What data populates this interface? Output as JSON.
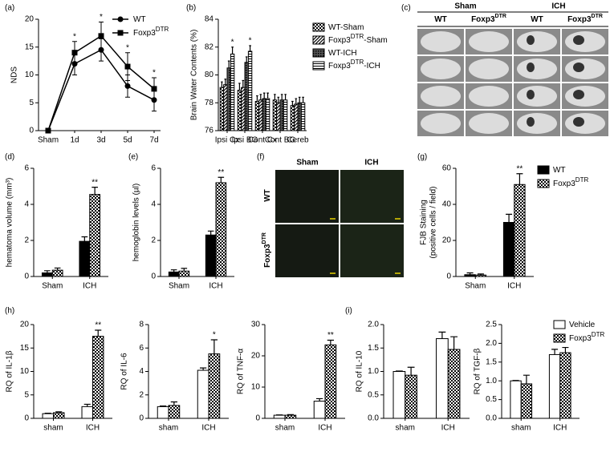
{
  "chart_data": [
    {
      "type": "line",
      "label": "(a)",
      "ylabel": "NDS",
      "categories": [
        "Sham",
        "1d",
        "3d",
        "5d",
        "7d"
      ],
      "ylim": [
        0,
        20
      ],
      "yticks": [
        0,
        5,
        10,
        15,
        20
      ],
      "legend": "right",
      "series": [
        {
          "name": "WT",
          "color": "#000000",
          "marker": "circle",
          "values": [
            0,
            12,
            14.5,
            8,
            5.5
          ],
          "errors": [
            0,
            2,
            2,
            2,
            2
          ]
        },
        {
          "name": "Foxp3",
          "name_sup": "DTR",
          "color": "#000000",
          "marker": "square",
          "values": [
            0,
            14,
            17,
            11.5,
            7.5
          ],
          "errors": [
            0,
            2,
            2.5,
            2.5,
            2
          ],
          "significance": [
            null,
            "*",
            "*",
            "*",
            "*"
          ]
        }
      ]
    },
    {
      "type": "bar",
      "label": "(b)",
      "ylabel": "Brain Water Contents (%)",
      "categories": [
        "Ipsi Cx",
        "Ipsi BG",
        "Cont Cx",
        "Cont BG",
        "Cereb"
      ],
      "ylim": [
        76,
        84
      ],
      "yticks": [
        76,
        78,
        80,
        82,
        84
      ],
      "legend": "right",
      "series": [
        {
          "name": "WT-Sham",
          "color": "#000000",
          "pattern": "checker",
          "values": [
            79.1,
            78.9,
            78.1,
            78.2,
            77.8
          ],
          "errors": [
            0.4,
            0.5,
            0.4,
            0.4,
            0.3
          ]
        },
        {
          "name": "Foxp3",
          "name_sup": "DTR",
          "name_suffix": "-Sham",
          "color": "#000000",
          "pattern": "hatch",
          "values": [
            79.3,
            79.1,
            78.2,
            78.0,
            77.9
          ],
          "errors": [
            0.4,
            0.5,
            0.4,
            0.4,
            0.4
          ]
        },
        {
          "name": "WT-ICH",
          "color": "#000000",
          "pattern": "dense",
          "values": [
            80.5,
            80.9,
            78.3,
            78.2,
            78.0
          ],
          "errors": [
            0.5,
            0.4,
            0.4,
            0.4,
            0.4
          ]
        },
        {
          "name": "Foxp3",
          "name_sup": "DTR",
          "name_suffix": "-ICH",
          "color": "#000000",
          "pattern": "hlines",
          "values": [
            81.5,
            81.7,
            78.3,
            78.2,
            78.0
          ],
          "errors": [
            0.5,
            0.4,
            0.4,
            0.4,
            0.4
          ],
          "significance": [
            "*",
            "*",
            null,
            null,
            null
          ]
        }
      ]
    },
    {
      "type": "bar",
      "label": "(d)",
      "ylabel": "hematoma volume (mm³)",
      "categories": [
        "Sham",
        "ICH"
      ],
      "ylim": [
        0,
        6
      ],
      "yticks": [
        0,
        2,
        4,
        6
      ],
      "series": [
        {
          "name": "WT",
          "color": "#000000",
          "pattern": "solid",
          "values": [
            0.2,
            1.95
          ],
          "errors": [
            0.12,
            0.25
          ]
        },
        {
          "name": "Foxp3",
          "name_sup": "DTR",
          "color": "#000000",
          "pattern": "checker",
          "values": [
            0.35,
            4.55
          ],
          "errors": [
            0.12,
            0.4
          ],
          "significance": [
            null,
            "**"
          ]
        }
      ]
    },
    {
      "type": "bar",
      "label": "(e)",
      "ylabel": "hemoglobin levels (µl)",
      "categories": [
        "Sham",
        "ICH"
      ],
      "ylim": [
        0,
        6
      ],
      "yticks": [
        0,
        2,
        4,
        6
      ],
      "series": [
        {
          "name": "WT",
          "color": "#000000",
          "pattern": "solid",
          "values": [
            0.25,
            2.3
          ],
          "errors": [
            0.12,
            0.22
          ]
        },
        {
          "name": "Foxp3",
          "name_sup": "DTR",
          "color": "#000000",
          "pattern": "checker",
          "values": [
            0.3,
            5.2
          ],
          "errors": [
            0.15,
            0.3
          ],
          "significance": [
            null,
            "**"
          ]
        }
      ]
    },
    {
      "type": "bar",
      "label": "(g)",
      "ylabel": [
        "FJB Staining",
        "(positive cells / field)"
      ],
      "categories": [
        "Sham",
        "ICH"
      ],
      "ylim": [
        0,
        60
      ],
      "yticks": [
        0,
        20,
        40,
        60
      ],
      "legend": "right",
      "series": [
        {
          "name": "WT",
          "color": "#000000",
          "pattern": "solid",
          "values": [
            1,
            30
          ],
          "errors": [
            1,
            4.5
          ]
        },
        {
          "name": "Foxp3",
          "name_sup": "DTR",
          "color": "#000000",
          "pattern": "checker",
          "values": [
            0.8,
            51
          ],
          "errors": [
            0.6,
            6
          ],
          "significance": [
            null,
            "**"
          ]
        }
      ]
    },
    {
      "type": "bar",
      "label": "(h)",
      "ylabel": "RQ of IL-1β",
      "categories": [
        "sham",
        "ICH"
      ],
      "ylim": [
        0,
        20
      ],
      "yticks": [
        0,
        5,
        10,
        15,
        20
      ],
      "series": [
        {
          "name": "Vehicle",
          "color": "#000000",
          "pattern": "white",
          "values": [
            1.0,
            2.5
          ],
          "errors": [
            0.1,
            0.5
          ]
        },
        {
          "name": "Foxp3",
          "name_sup": "DTR",
          "color": "#000000",
          "pattern": "checker",
          "values": [
            1.2,
            17.5
          ],
          "errors": [
            0.2,
            1.3
          ],
          "significance": [
            null,
            "**"
          ]
        }
      ]
    },
    {
      "type": "bar",
      "ylabel": "RQ of IL-6",
      "categories": [
        "sham",
        "ICH"
      ],
      "ylim": [
        0,
        8
      ],
      "yticks": [
        0,
        2,
        4,
        6,
        8
      ],
      "series": [
        {
          "name": "Vehicle",
          "color": "#000000",
          "pattern": "white",
          "values": [
            1.0,
            4.1
          ],
          "errors": [
            0.05,
            0.2
          ]
        },
        {
          "name": "Foxp3",
          "name_sup": "DTR",
          "color": "#000000",
          "pattern": "checker",
          "values": [
            1.1,
            5.5
          ],
          "errors": [
            0.3,
            1.2
          ],
          "significance": [
            null,
            "*"
          ]
        }
      ]
    },
    {
      "type": "bar",
      "ylabel": "RQ of TNF-α",
      "categories": [
        "sham",
        "ICH"
      ],
      "ylim": [
        0,
        30
      ],
      "yticks": [
        0,
        10,
        20,
        30
      ],
      "series": [
        {
          "name": "Vehicle",
          "color": "#000000",
          "pattern": "white",
          "values": [
            1.0,
            5.5
          ],
          "errors": [
            0.1,
            0.8
          ]
        },
        {
          "name": "Foxp3",
          "name_sup": "DTR",
          "color": "#000000",
          "pattern": "checker",
          "values": [
            1.0,
            23.5
          ],
          "errors": [
            0.2,
            1.5
          ],
          "significance": [
            null,
            "**"
          ]
        }
      ]
    },
    {
      "type": "bar",
      "label": "(i)",
      "ylabel": "RQ of IL-10",
      "categories": [
        "sham",
        "ICH"
      ],
      "ylim": [
        0,
        2.0
      ],
      "yticks": [
        {
          "value": 0,
          "label": "0.0"
        },
        0.5,
        {
          "value": 1,
          "label": "1.0"
        },
        1.5,
        {
          "value": 2,
          "label": "2.0"
        }
      ],
      "series": [
        {
          "name": "Vehicle",
          "color": "#000000",
          "pattern": "white",
          "values": [
            1.0,
            1.7
          ],
          "errors": [
            0.01,
            0.14
          ]
        },
        {
          "name": "Foxp3",
          "name_sup": "DTR",
          "color": "#000000",
          "pattern": "checker",
          "values": [
            0.92,
            1.47
          ],
          "errors": [
            0.17,
            0.27
          ]
        }
      ]
    },
    {
      "type": "bar",
      "ylabel": "RQ of TGF-β",
      "categories": [
        "sham",
        "ICH"
      ],
      "ylim": [
        0,
        2.5
      ],
      "yticks": [
        {
          "value": 0,
          "label": "0.0"
        },
        0.5,
        {
          "value": 1,
          "label": "1.0"
        },
        1.5,
        {
          "value": 2,
          "label": "2.0"
        },
        2.5
      ],
      "legend": "right",
      "series": [
        {
          "name": "Vehicle",
          "color": "#000000",
          "pattern": "white",
          "values": [
            1.0,
            1.7
          ],
          "errors": [
            0.01,
            0.14
          ]
        },
        {
          "name": "Foxp3",
          "name_sup": "DTR",
          "color": "#000000",
          "pattern": "checker",
          "values": [
            0.92,
            1.75
          ],
          "errors": [
            0.23,
            0.14
          ]
        }
      ]
    }
  ],
  "images": [
    {
      "label": "(c)",
      "groups": [
        "Sham",
        "ICH"
      ],
      "columns": [
        {
          "name": "WT"
        },
        {
          "name": "Foxp3",
          "name_sup": "DTR"
        },
        {
          "name": "WT"
        },
        {
          "name": "Foxp3",
          "name_sup": "DTR"
        }
      ]
    },
    {
      "label": "(f)",
      "columns": [
        "Sham",
        "ICH"
      ],
      "rows": [
        {
          "name": "WT"
        },
        {
          "name": "Foxp3",
          "name_sup": "DTR"
        }
      ]
    }
  ]
}
